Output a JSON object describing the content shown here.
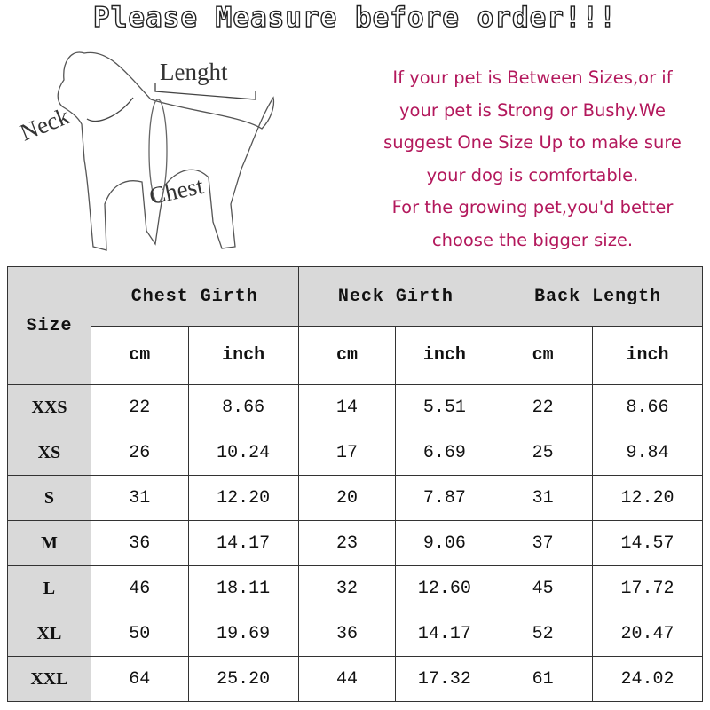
{
  "title": "Please Measure before order!!!",
  "diagram": {
    "neck_label": "Neck",
    "length_label": "Lenght",
    "chest_label": "Chest"
  },
  "note_lines": [
    "If your pet is Between Sizes,or if",
    "your pet is Strong or Bushy.We",
    "suggest One Size Up to make sure",
    "your dog is comfortable.",
    "For the growing pet,you'd better",
    "choose the bigger size."
  ],
  "colors": {
    "note": "#b3185c",
    "header_bg": "#d9d9d9"
  },
  "table": {
    "size_header": "Size",
    "groups": [
      "Chest Girth",
      "Neck Girth",
      "Back Length"
    ],
    "units": [
      "cm",
      "inch",
      "cm",
      "inch",
      "cm",
      "inch"
    ],
    "rows": [
      {
        "size": "XXS",
        "values": [
          "22",
          "8.66",
          "14",
          "5.51",
          "22",
          "8.66"
        ]
      },
      {
        "size": "XS",
        "values": [
          "26",
          "10.24",
          "17",
          "6.69",
          "25",
          "9.84"
        ]
      },
      {
        "size": "S",
        "values": [
          "31",
          "12.20",
          "20",
          "7.87",
          "31",
          "12.20"
        ]
      },
      {
        "size": "M",
        "values": [
          "36",
          "14.17",
          "23",
          "9.06",
          "37",
          "14.57"
        ]
      },
      {
        "size": "L",
        "values": [
          "46",
          "18.11",
          "32",
          "12.60",
          "45",
          "17.72"
        ]
      },
      {
        "size": "XL",
        "values": [
          "50",
          "19.69",
          "36",
          "14.17",
          "52",
          "20.47"
        ]
      },
      {
        "size": "XXL",
        "values": [
          "64",
          "25.20",
          "44",
          "17.32",
          "61",
          "24.02"
        ]
      }
    ]
  }
}
